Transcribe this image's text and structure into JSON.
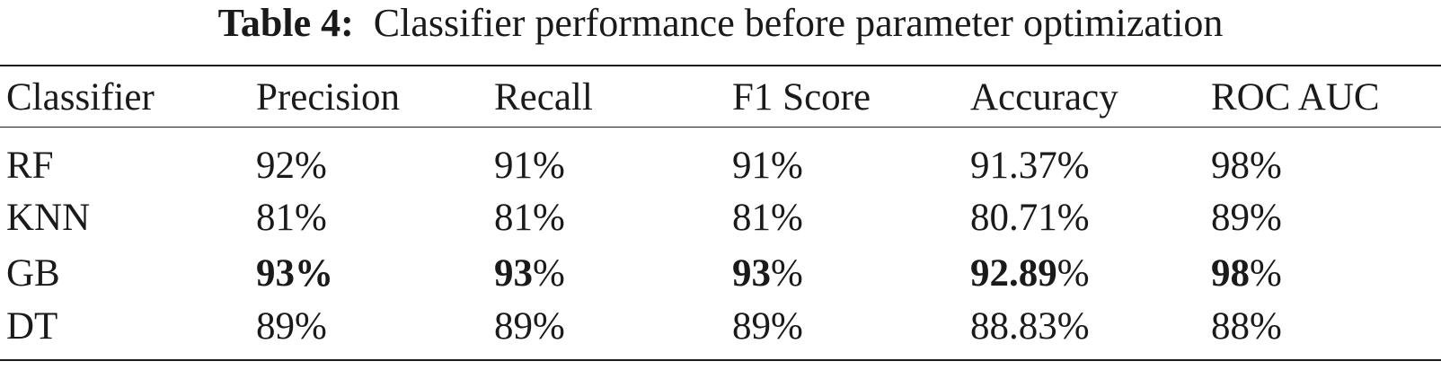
{
  "caption": {
    "label": "Table 4:",
    "text": "Classifier performance before parameter optimization"
  },
  "table": {
    "columns": [
      "Classifier",
      "Precision",
      "Recall",
      "F1 Score",
      "Accuracy",
      "ROC AUC"
    ],
    "rows": [
      {
        "classifier": "RF",
        "cells": [
          {
            "value": "92",
            "unit": "%",
            "bold": false
          },
          {
            "value": "91",
            "unit": "%",
            "bold": false
          },
          {
            "value": "91",
            "unit": "%",
            "bold": false
          },
          {
            "value": "91.37",
            "unit": "%",
            "bold": false
          },
          {
            "value": "98",
            "unit": "%",
            "bold": false
          }
        ]
      },
      {
        "classifier": "KNN",
        "cells": [
          {
            "value": "81",
            "unit": "%",
            "bold": false
          },
          {
            "value": "81",
            "unit": "%",
            "bold": false
          },
          {
            "value": "81",
            "unit": "%",
            "bold": false
          },
          {
            "value": "80.71",
            "unit": "%",
            "bold": false
          },
          {
            "value": "89",
            "unit": "%",
            "bold": false
          }
        ]
      },
      {
        "classifier": "GB",
        "cells": [
          {
            "value": "93",
            "unit": "%",
            "bold": true,
            "bold_unit": true
          },
          {
            "value": "93",
            "unit": "%",
            "bold": true,
            "bold_unit": false
          },
          {
            "value": "93",
            "unit": "%",
            "bold": true,
            "bold_unit": false
          },
          {
            "value": "92.89",
            "unit": "%",
            "bold": true,
            "bold_unit": false
          },
          {
            "value": "98",
            "unit": "%",
            "bold": true,
            "bold_unit": false
          }
        ]
      },
      {
        "classifier": "DT",
        "cells": [
          {
            "value": "89",
            "unit": "%",
            "bold": false
          },
          {
            "value": "89",
            "unit": "%",
            "bold": false
          },
          {
            "value": "89",
            "unit": "%",
            "bold": false
          },
          {
            "value": "88.83",
            "unit": "%",
            "bold": false
          },
          {
            "value": "88",
            "unit": "%",
            "bold": false
          }
        ]
      }
    ]
  }
}
